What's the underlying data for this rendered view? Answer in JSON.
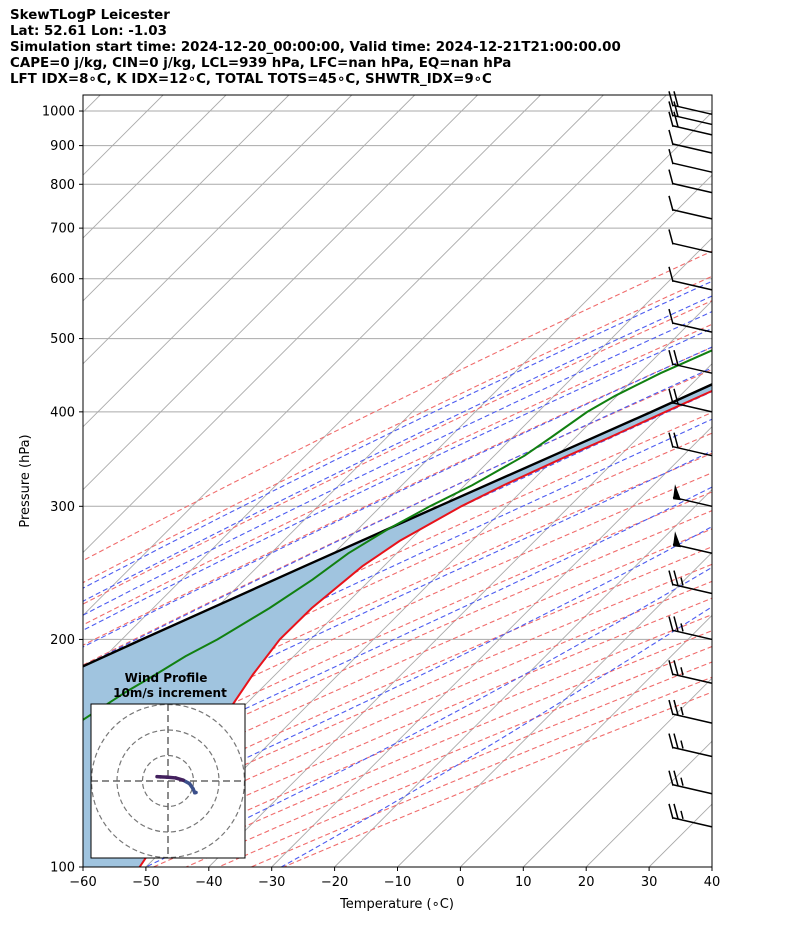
{
  "header": {
    "line1": "SkewTLogP Leicester",
    "line2": "Lat: 52.61   Lon: -1.03",
    "line3": "Simulation start time: 2024-12-20_00:00:00, Valid time: 2024-12-21T21:00:00.00",
    "line4": "CAPE=0 j/kg, CIN=0 j/kg, LCL=939 hPa, LFC=nan hPa, EQ=nan hPa",
    "line5": "LFT IDX=8∘C, K IDX=12∘C, TOTAL TOTS=45∘C, SHWTR_IDX=9∘C"
  },
  "inset": {
    "title1": "Wind Profile",
    "title2": "10m/s increment"
  },
  "chart_data": {
    "type": "line",
    "xlabel": "Temperature (∘C)",
    "ylabel": "Pressure (hPa)",
    "xlim": [
      -60,
      40
    ],
    "ylim": [
      1050,
      100
    ],
    "yscale": "log",
    "skew": "45-degree",
    "xticks": [
      -60,
      -50,
      -40,
      -30,
      -20,
      -10,
      0,
      10,
      20,
      30,
      40
    ],
    "xtick_labels": [
      "−60",
      "−50",
      "−40",
      "−30",
      "−20",
      "−10",
      "0",
      "10",
      "20",
      "30",
      "40"
    ],
    "yticks": [
      1000,
      900,
      800,
      700,
      600,
      500,
      400,
      300,
      200,
      100
    ],
    "ytick_labels": [
      "1000",
      "900",
      "800",
      "700",
      "600",
      "500",
      "400",
      "300",
      "200",
      "100"
    ],
    "grid": true,
    "colors": {
      "temperature": "#e8121a",
      "dewpoint": "#118011",
      "parcel": "#000000",
      "cin_shading": "#a0c4df",
      "dry_adiabat": "#f06c6c",
      "moist_adiabat": "#4d5cf0",
      "mixing_ratio": "#9a55c9",
      "isotherm": "#aaaaaa"
    },
    "series": [
      {
        "pressure": [
          990,
          960,
          930,
          900,
          850,
          800,
          750,
          700,
          650,
          600,
          550,
          500,
          450,
          400,
          370,
          350,
          320,
          300,
          270,
          250,
          220,
          200,
          180,
          160,
          140,
          120,
          110,
          100
        ],
        "temperature": [
          5.8,
          4.6,
          3.9,
          2.8,
          0.8,
          -1.2,
          -3.8,
          -6.8,
          -10.8,
          -15.2,
          -20.2,
          -25.8,
          -32.2,
          -39.8,
          -44.6,
          -48.3,
          -53.8,
          -57.2,
          -61.5,
          -63.4,
          -64.8,
          -64.9,
          -63.6,
          -61.6,
          -58.4,
          -54.2,
          -52.6,
          -51.0
        ]
      },
      {
        "pressure": [
          980,
          960,
          930,
          900,
          880,
          850,
          800,
          750,
          700,
          650,
          600,
          550,
          500,
          450,
          420,
          400,
          370,
          350,
          320,
          300,
          280,
          260,
          240,
          220,
          200,
          190,
          180,
          170,
          160,
          150,
          140,
          130,
          120,
          110,
          100
        ],
        "dewpoint": [
          4.0,
          3.9,
          3.2,
          1.2,
          -1.2,
          -5.4,
          -9.7,
          -12.7,
          -16.2,
          -21.4,
          -27.2,
          -33.2,
          -39.8,
          -46.7,
          -50.3,
          -52.2,
          -53.9,
          -55.2,
          -58.8,
          -62.2,
          -65.2,
          -67.7,
          -69.2,
          -71.5,
          -74.8,
          -77.2,
          -79.0,
          -81.1,
          -82.8,
          -84.6,
          -86.6,
          -89.1,
          -91.6,
          -94.2,
          -97.3
        ]
      },
      {
        "pressure": [
          990,
          939,
          900,
          850,
          800,
          750,
          700,
          650,
          600,
          550,
          500,
          450,
          400,
          350,
          300,
          250,
          200,
          150,
          100
        ],
        "parcel_temperature": [
          6.9,
          3.6,
          1.8,
          -0.5,
          -3.2,
          -6.2,
          -9.5,
          -13.3,
          -17.6,
          -22.6,
          -28.2,
          -34.6,
          -42.0,
          -50.7,
          -60.8,
          -72.6,
          -86.8,
          -104.7,
          -129.3
        ]
      }
    ],
    "wind_barbs": [
      {
        "pressure": 990,
        "speed_kt": 20
      },
      {
        "pressure": 960,
        "speed_kt": 20
      },
      {
        "pressure": 930,
        "speed_kt": 20
      },
      {
        "pressure": 880,
        "speed_kt": 10
      },
      {
        "pressure": 830,
        "speed_kt": 10
      },
      {
        "pressure": 780,
        "speed_kt": 10
      },
      {
        "pressure": 720,
        "speed_kt": 10
      },
      {
        "pressure": 650,
        "speed_kt": 10
      },
      {
        "pressure": 580,
        "speed_kt": 10
      },
      {
        "pressure": 510,
        "speed_kt": 10
      },
      {
        "pressure": 450,
        "speed_kt": 20
      },
      {
        "pressure": 400,
        "speed_kt": 20
      },
      {
        "pressure": 350,
        "speed_kt": 20
      },
      {
        "pressure": 300,
        "speed_kt": 50
      },
      {
        "pressure": 260,
        "speed_kt": 50
      },
      {
        "pressure": 230,
        "speed_kt": 25
      },
      {
        "pressure": 200,
        "speed_kt": 25
      },
      {
        "pressure": 175,
        "speed_kt": 25
      },
      {
        "pressure": 155,
        "speed_kt": 25
      },
      {
        "pressure": 140,
        "speed_kt": 25
      },
      {
        "pressure": 125,
        "speed_kt": 25
      },
      {
        "pressure": 113,
        "speed_kt": 25
      }
    ],
    "hodograph": {
      "ring_step_ms": 10,
      "u": [
        11,
        10.5,
        9.8,
        8.4,
        6.0,
        3.0,
        -0.5,
        -3.0,
        -4.3
      ],
      "v": [
        -4.5,
        -4.6,
        -3.0,
        -1.0,
        0.3,
        1.2,
        1.5,
        1.6,
        1.7
      ]
    }
  }
}
